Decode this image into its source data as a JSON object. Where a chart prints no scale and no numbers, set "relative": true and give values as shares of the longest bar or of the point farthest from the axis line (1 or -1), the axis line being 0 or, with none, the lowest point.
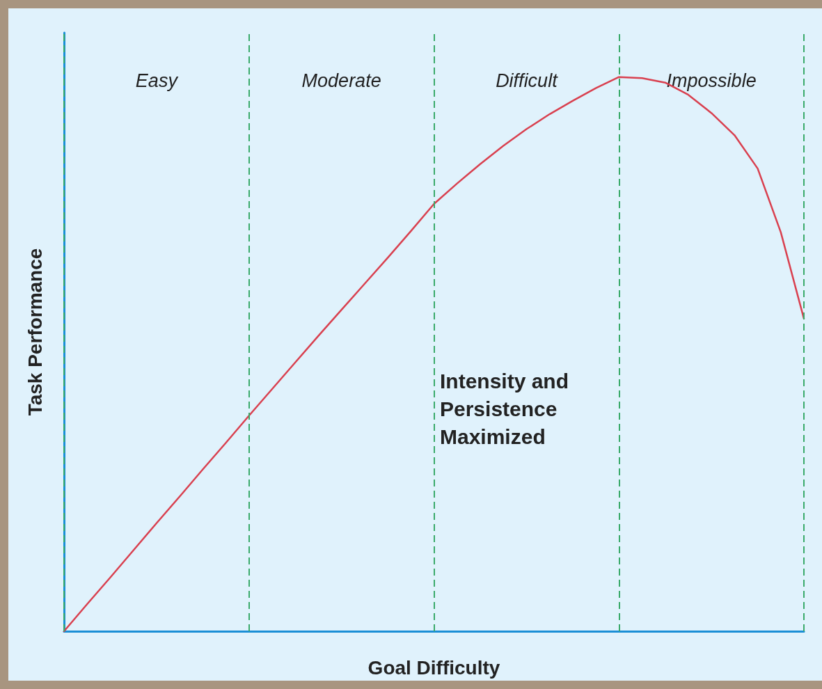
{
  "chart_data": {
    "type": "line",
    "relative": true,
    "xlabel": "Goal Difficulty",
    "ylabel": "Task Performance",
    "categories": [
      null,
      null,
      null,
      null,
      "Easy",
      null,
      null,
      null,
      null,
      null,
      null,
      null,
      "Moderate",
      null,
      null,
      null,
      null,
      null,
      null,
      null,
      "Difficult",
      null,
      null,
      null,
      null,
      null,
      null,
      null,
      "Impossible",
      null,
      null,
      null,
      null
    ],
    "series": [
      {
        "color": "#d9404f",
        "values": [
          0,
          0.049,
          0.097,
          0.146,
          0.195,
          0.243,
          0.292,
          0.34,
          0.389,
          0.437,
          0.485,
          0.533,
          0.58,
          0.627,
          0.674,
          0.722,
          0.771,
          0.808,
          0.843,
          0.876,
          0.906,
          0.933,
          0.957,
          0.98,
          1.0,
          0.998,
          0.99,
          0.968,
          0.935,
          0.895,
          0.835,
          0.72,
          0.564
        ]
      }
    ],
    "annotations": [
      "Intensity and Persistence Maximized"
    ],
    "grid": "x",
    "marker": "none",
    "line_style": "solid"
  }
}
